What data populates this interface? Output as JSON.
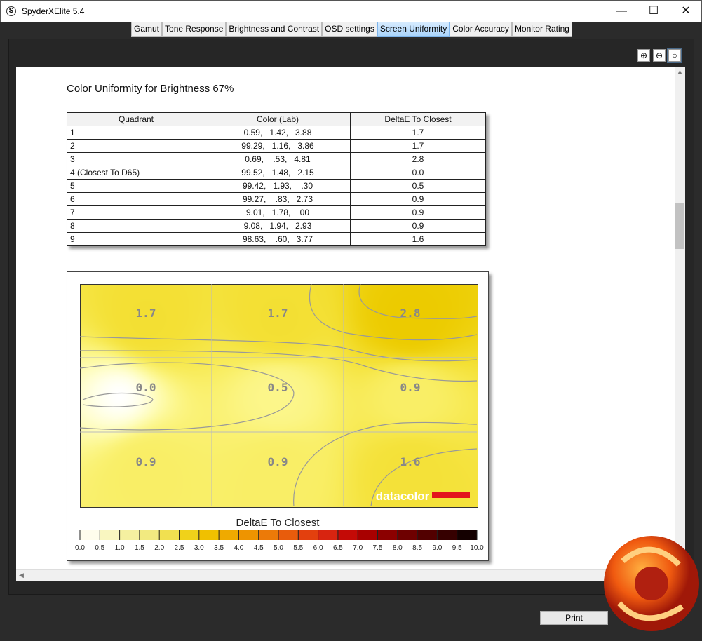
{
  "window": {
    "title": "SpyderXElite 5.4",
    "app_icon": "S",
    "minimize": "—",
    "maximize": "☐",
    "close": "✕"
  },
  "tabs": [
    {
      "label": "Gamut"
    },
    {
      "label": "Tone Response"
    },
    {
      "label": "Brightness and Contrast"
    },
    {
      "label": "OSD settings"
    },
    {
      "label": "Screen Uniformity",
      "active": true
    },
    {
      "label": "Color Accuracy"
    },
    {
      "label": "Monitor Rating"
    }
  ],
  "zoom_icons": [
    "zoom-in-icon",
    "zoom-out-icon",
    "zoom-fit-icon"
  ],
  "report": {
    "heading": "Color Uniformity for Brightness 67%",
    "table": {
      "headers": [
        "Quadrant",
        "Color (Lab)",
        "DeltaE To Closest"
      ],
      "rows": [
        [
          "1",
          "0.59,   1.42,   3.88",
          "1.7"
        ],
        [
          "2",
          "99.29,   1.16,   3.86",
          "1.7"
        ],
        [
          "3",
          "0.69,    .53,   4.81",
          "2.8"
        ],
        [
          "4 (Closest To D65)",
          "99.52,   1.48,   2.15",
          "0.0"
        ],
        [
          "5",
          "99.42,   1.93,    .30",
          "0.5"
        ],
        [
          "6",
          "99.27,    .83,   2.73",
          "0.9"
        ],
        [
          "7",
          "9.01,   1.78,    00",
          "0.9"
        ],
        [
          "8",
          "9.08,   1.94,   2.93",
          "0.9"
        ],
        [
          "9",
          "98.63,    .60,   3.77",
          "1.6"
        ]
      ]
    }
  },
  "chart_data": {
    "type": "heatmap",
    "grid": {
      "rows": 3,
      "cols": 3
    },
    "values": [
      [
        1.7,
        1.7,
        2.8
      ],
      [
        0.0,
        0.5,
        0.9
      ],
      [
        0.9,
        0.9,
        1.6
      ]
    ],
    "labels": [
      [
        "1.7",
        "1.7",
        "2.8"
      ],
      [
        "0.0",
        "0.5",
        "0.9"
      ],
      [
        "0.9",
        "0.9",
        "1.6"
      ]
    ],
    "watermark": "datacolor",
    "colorbar": {
      "title": "DeltaE To Closest",
      "range": [
        0,
        10
      ],
      "ticks": [
        "0.0",
        "0.5",
        "1.0",
        "1.5",
        "2.0",
        "2.5",
        "3.0",
        "3.5",
        "4.0",
        "4.5",
        "5.0",
        "5.5",
        "6.0",
        "6.5",
        "7.0",
        "7.5",
        "8.0",
        "8.5",
        "9.0",
        "9.5",
        "10.0"
      ],
      "colors": [
        "#fffdec",
        "#f9f6c0",
        "#f5f0a0",
        "#f2ea80",
        "#f1e050",
        "#f0d21a",
        "#f0c000",
        "#efaa00",
        "#ee9400",
        "#ec7a08",
        "#e85c0c",
        "#e3400e",
        "#d82410",
        "#c40a06",
        "#a80000",
        "#8c0000",
        "#6e0000",
        "#520000",
        "#360000",
        "#140000"
      ]
    },
    "heat_colors": {
      "low": "#ffffff",
      "high": "#eccb00"
    }
  },
  "footer": {
    "print": "Print"
  }
}
